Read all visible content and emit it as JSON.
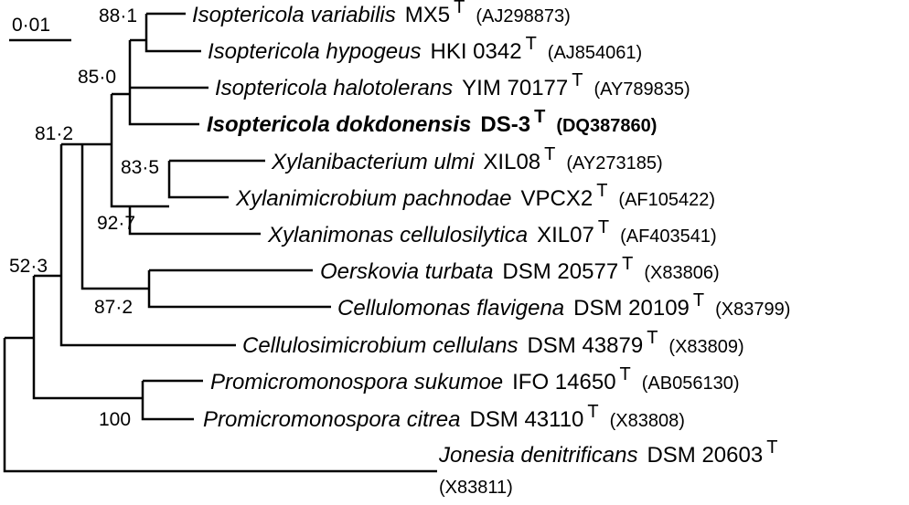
{
  "scale_bar": {
    "label": "0·01"
  },
  "bootstrap": {
    "n1": "88·1",
    "n2": "85·0",
    "n3": "81·2",
    "n4": "83·5",
    "n5": "92·7",
    "n6": "52·3",
    "n7": "87·2",
    "n8": "100"
  },
  "taxa": [
    {
      "genus": "Isoptericola variabilis",
      "strain": "MX5",
      "sup": "T",
      "acc": "(AJ298873)",
      "bold": false
    },
    {
      "genus": "Isoptericola hypogeus",
      "strain": "HKI 0342",
      "sup": "T",
      "acc": "(AJ854061)",
      "bold": false
    },
    {
      "genus": "Isoptericola halotolerans",
      "strain": "YIM 70177",
      "sup": "T",
      "acc": "(AY789835)",
      "bold": false
    },
    {
      "genus": "Isoptericola dokdonensis",
      "strain": "DS-3",
      "sup": "T",
      "acc": "(DQ387860)",
      "bold": true
    },
    {
      "genus": "Xylanibacterium ulmi",
      "strain": "XIL08",
      "sup": "T",
      "acc": "(AY273185)",
      "bold": false
    },
    {
      "genus": "Xylanimicrobium pachnodae",
      "strain": "VPCX2",
      "sup": "T",
      "acc": "(AF105422)",
      "bold": false
    },
    {
      "genus": "Xylanimonas cellulosilytica",
      "strain": "XIL07",
      "sup": "T",
      "acc": "(AF403541)",
      "bold": false
    },
    {
      "genus": "Oerskovia turbata",
      "strain": "DSM 20577",
      "sup": "T",
      "acc": "(X83806)",
      "bold": false
    },
    {
      "genus": "Cellulomonas flavigena",
      "strain": "DSM 20109",
      "sup": "T",
      "acc": "(X83799)",
      "bold": false
    },
    {
      "genus": "Cellulosimicrobium cellulans",
      "strain": "DSM 43879",
      "sup": "T",
      "acc": "(X83809)",
      "bold": false
    },
    {
      "genus": "Promicromonospora sukumoe",
      "strain": "IFO 14650",
      "sup": "T",
      "acc": "(AB056130)",
      "bold": false
    },
    {
      "genus": "Promicromonospora citrea",
      "strain": "DSM 43110",
      "sup": "T",
      "acc": "(X83808)",
      "bold": false
    },
    {
      "genus": "Jonesia denitrificans",
      "strain": "DSM 20603",
      "sup": "T",
      "acc": "(X83811)",
      "bold": false
    }
  ]
}
